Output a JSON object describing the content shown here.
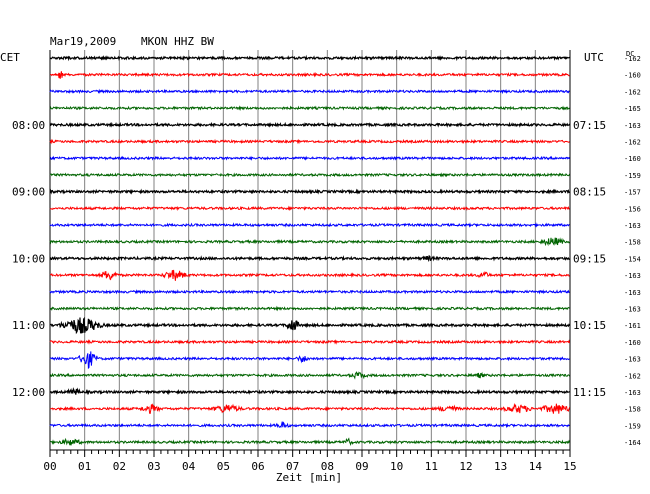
{
  "header": {
    "date": "Mar19,2009",
    "station": "MKON HHZ BW",
    "left_zone": "CET",
    "right_zone": "UTC",
    "offset_header": "DC"
  },
  "colors": {
    "trace_cycle": [
      "#000000",
      "#ff0000",
      "#0000ff",
      "#006400"
    ],
    "grid": "#808080",
    "frame": "#000000",
    "text": "#000000"
  },
  "chart_data": {
    "type": "line",
    "title": "Mar19,2009   MKON HHZ BW",
    "xlabel": "Zeit [min]",
    "x_ticks": [
      "00",
      "01",
      "02",
      "03",
      "04",
      "05",
      "06",
      "07",
      "08",
      "09",
      "10",
      "11",
      "12",
      "13",
      "14",
      "15"
    ],
    "xlim": [
      0,
      15
    ],
    "minor_ticks_per_minute": 5,
    "grid": true,
    "rows_per_hour": 4,
    "row_count": 24,
    "left_time_labels": [
      {
        "row": 4,
        "label": "08:00"
      },
      {
        "row": 8,
        "label": "09:00"
      },
      {
        "row": 12,
        "label": "10:00"
      },
      {
        "row": 16,
        "label": "11:00"
      },
      {
        "row": 20,
        "label": "12:00"
      }
    ],
    "right_time_labels": [
      {
        "row": 4,
        "label": "07:15"
      },
      {
        "row": 8,
        "label": "08:15"
      },
      {
        "row": 12,
        "label": "09:15"
      },
      {
        "row": 16,
        "label": "10:15"
      },
      {
        "row": 20,
        "label": "11:15"
      }
    ],
    "dc_offsets": [
      -162,
      -160,
      -162,
      -165,
      -163,
      -162,
      -160,
      -159,
      -157,
      -156,
      -163,
      -158,
      -154,
      -163,
      -163,
      -163,
      -161,
      -160,
      -163,
      -162,
      -163,
      -158,
      -159,
      -164
    ],
    "events": [
      {
        "row": 1,
        "minute": 0.3,
        "amplitude": 6,
        "duration": 0.1
      },
      {
        "row": 13,
        "minute": 1.7,
        "amplitude": 6,
        "duration": 0.35
      },
      {
        "row": 13,
        "minute": 3.6,
        "amplitude": 6,
        "duration": 0.5
      },
      {
        "row": 13,
        "minute": 12.5,
        "amplitude": 4,
        "duration": 0.3
      },
      {
        "row": 11,
        "minute": 14.5,
        "amplitude": 5,
        "duration": 0.5
      },
      {
        "row": 12,
        "minute": 10.9,
        "amplitude": 3,
        "duration": 0.3
      },
      {
        "row": 16,
        "minute": 0.9,
        "amplitude": 9,
        "duration": 0.8
      },
      {
        "row": 16,
        "minute": 7.0,
        "amplitude": 8,
        "duration": 0.25
      },
      {
        "row": 18,
        "minute": 1.1,
        "amplitude": 10,
        "duration": 0.35
      },
      {
        "row": 18,
        "minute": 7.3,
        "amplitude": 4,
        "duration": 0.3
      },
      {
        "row": 19,
        "minute": 8.9,
        "amplitude": 4,
        "duration": 0.4
      },
      {
        "row": 19,
        "minute": 12.4,
        "amplitude": 3,
        "duration": 0.3
      },
      {
        "row": 20,
        "minute": 0.7,
        "amplitude": 4,
        "duration": 0.3
      },
      {
        "row": 21,
        "minute": 2.9,
        "amplitude": 5,
        "duration": 0.4
      },
      {
        "row": 21,
        "minute": 5.1,
        "amplitude": 5,
        "duration": 0.6
      },
      {
        "row": 21,
        "minute": 11.5,
        "amplitude": 4,
        "duration": 0.5
      },
      {
        "row": 21,
        "minute": 13.5,
        "amplitude": 5,
        "duration": 0.6
      },
      {
        "row": 21,
        "minute": 14.6,
        "amplitude": 6,
        "duration": 0.6
      },
      {
        "row": 22,
        "minute": 6.7,
        "amplitude": 4,
        "duration": 0.3
      },
      {
        "row": 23,
        "minute": 0.6,
        "amplitude": 4,
        "duration": 0.5
      },
      {
        "row": 23,
        "minute": 8.6,
        "amplitude": 4,
        "duration": 0.2
      }
    ]
  }
}
